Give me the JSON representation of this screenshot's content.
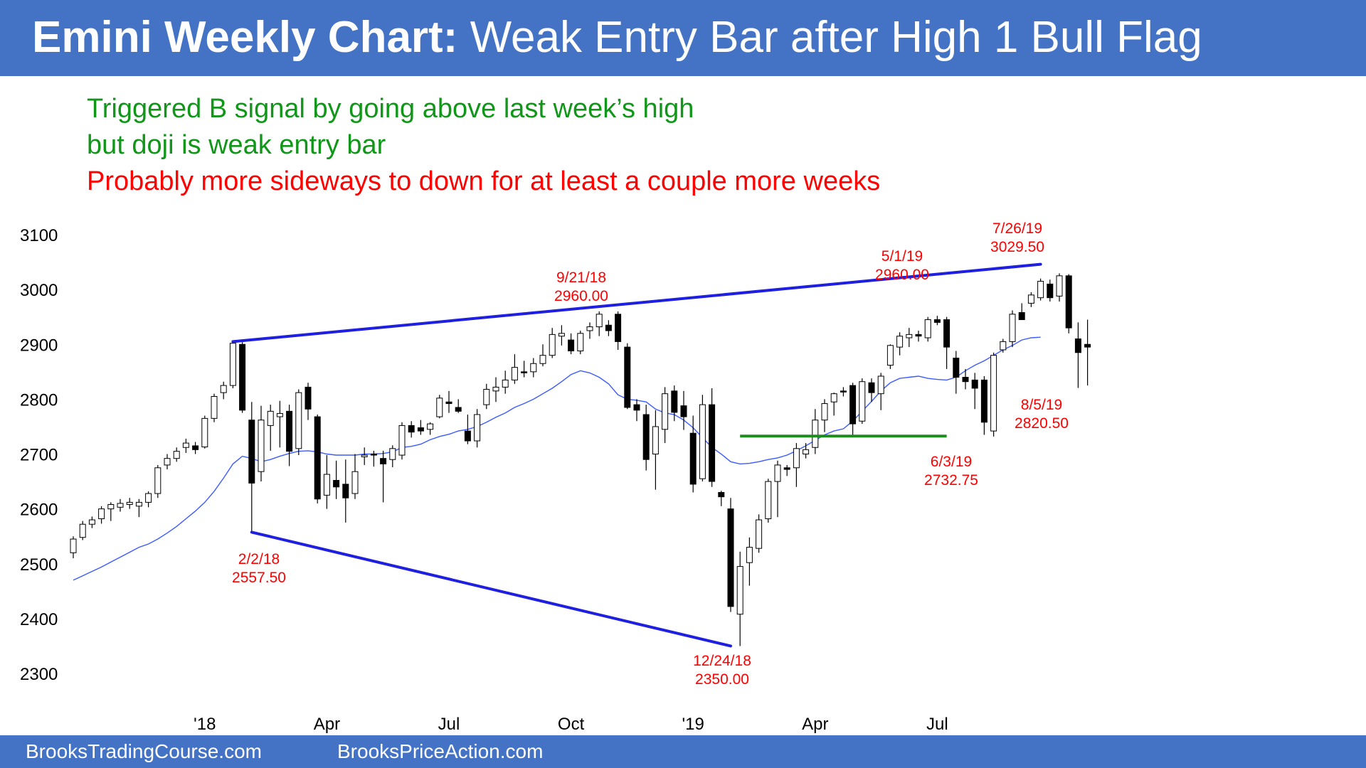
{
  "title": {
    "bold": "Emini Weekly Chart:",
    "rest": "Weak Entry Bar after High 1 Bull Flag"
  },
  "notes": [
    {
      "text": "Triggered B signal by going above last week’s high",
      "color": "#109618"
    },
    {
      "text": "but doji is weak entry bar",
      "color": "#109618"
    },
    {
      "text": "Probably more sideways to down for at least a couple more weeks",
      "color": "#ff0000"
    }
  ],
  "footer": {
    "left": "BrooksTradingCourse.com",
    "right": "BrooksPriceAction.com"
  },
  "colors": {
    "accent": "#4472c4",
    "trendline": "#1f1fe0",
    "ma": "#3b5bff",
    "support": "#1e8c1e",
    "annotation": "#ff0000"
  },
  "chart_data": {
    "type": "candlestick",
    "title": "",
    "xlabel": "",
    "ylabel": "",
    "ylim": [
      2250,
      3130
    ],
    "yticks": [
      2300,
      2400,
      2500,
      2600,
      2700,
      2800,
      2900,
      3000,
      3100
    ],
    "xtick_labels": [
      {
        "label": "'18",
        "bar": 14
      },
      {
        "label": "Apr",
        "bar": 27
      },
      {
        "label": "Jul",
        "bar": 40
      },
      {
        "label": "Oct",
        "bar": 53
      },
      {
        "label": "'19",
        "bar": 66
      },
      {
        "label": "Apr",
        "bar": 79
      },
      {
        "label": "Jul",
        "bar": 92
      }
    ],
    "candles": [
      {
        "o": 2520,
        "h": 2550,
        "l": 2510,
        "c": 2545
      },
      {
        "o": 2548,
        "h": 2578,
        "l": 2543,
        "c": 2572
      },
      {
        "o": 2572,
        "h": 2586,
        "l": 2565,
        "c": 2580
      },
      {
        "o": 2582,
        "h": 2605,
        "l": 2573,
        "c": 2600
      },
      {
        "o": 2600,
        "h": 2612,
        "l": 2578,
        "c": 2608
      },
      {
        "o": 2603,
        "h": 2618,
        "l": 2595,
        "c": 2610
      },
      {
        "o": 2608,
        "h": 2620,
        "l": 2600,
        "c": 2612
      },
      {
        "o": 2605,
        "h": 2618,
        "l": 2585,
        "c": 2612
      },
      {
        "o": 2612,
        "h": 2632,
        "l": 2603,
        "c": 2628
      },
      {
        "o": 2628,
        "h": 2680,
        "l": 2620,
        "c": 2675
      },
      {
        "o": 2680,
        "h": 2700,
        "l": 2672,
        "c": 2692
      },
      {
        "o": 2692,
        "h": 2712,
        "l": 2686,
        "c": 2705
      },
      {
        "o": 2712,
        "h": 2728,
        "l": 2702,
        "c": 2720
      },
      {
        "o": 2715,
        "h": 2722,
        "l": 2700,
        "c": 2708
      },
      {
        "o": 2713,
        "h": 2770,
        "l": 2710,
        "c": 2765
      },
      {
        "o": 2765,
        "h": 2810,
        "l": 2758,
        "c": 2805
      },
      {
        "o": 2812,
        "h": 2832,
        "l": 2800,
        "c": 2825
      },
      {
        "o": 2825,
        "h": 2905,
        "l": 2820,
        "c": 2902
      },
      {
        "o": 2900,
        "h": 2904,
        "l": 2775,
        "c": 2780
      },
      {
        "o": 2762,
        "h": 2795,
        "l": 2557,
        "c": 2647
      },
      {
        "o": 2668,
        "h": 2788,
        "l": 2650,
        "c": 2762
      },
      {
        "o": 2752,
        "h": 2790,
        "l": 2706,
        "c": 2778
      },
      {
        "o": 2768,
        "h": 2797,
        "l": 2712,
        "c": 2774
      },
      {
        "o": 2778,
        "h": 2790,
        "l": 2678,
        "c": 2705
      },
      {
        "o": 2710,
        "h": 2818,
        "l": 2698,
        "c": 2812
      },
      {
        "o": 2822,
        "h": 2830,
        "l": 2762,
        "c": 2782
      },
      {
        "o": 2768,
        "h": 2772,
        "l": 2610,
        "c": 2618
      },
      {
        "o": 2625,
        "h": 2698,
        "l": 2600,
        "c": 2663
      },
      {
        "o": 2652,
        "h": 2688,
        "l": 2618,
        "c": 2640
      },
      {
        "o": 2645,
        "h": 2690,
        "l": 2575,
        "c": 2620
      },
      {
        "o": 2628,
        "h": 2700,
        "l": 2618,
        "c": 2668
      },
      {
        "o": 2695,
        "h": 2712,
        "l": 2680,
        "c": 2698
      },
      {
        "o": 2700,
        "h": 2706,
        "l": 2677,
        "c": 2698
      },
      {
        "o": 2692,
        "h": 2706,
        "l": 2612,
        "c": 2682
      },
      {
        "o": 2690,
        "h": 2716,
        "l": 2676,
        "c": 2710
      },
      {
        "o": 2698,
        "h": 2758,
        "l": 2690,
        "c": 2752
      },
      {
        "o": 2752,
        "h": 2760,
        "l": 2730,
        "c": 2740
      },
      {
        "o": 2748,
        "h": 2762,
        "l": 2735,
        "c": 2742
      },
      {
        "o": 2745,
        "h": 2758,
        "l": 2735,
        "c": 2755
      },
      {
        "o": 2768,
        "h": 2808,
        "l": 2765,
        "c": 2802
      },
      {
        "o": 2795,
        "h": 2815,
        "l": 2775,
        "c": 2792
      },
      {
        "o": 2785,
        "h": 2800,
        "l": 2775,
        "c": 2778
      },
      {
        "o": 2742,
        "h": 2772,
        "l": 2718,
        "c": 2724
      },
      {
        "o": 2724,
        "h": 2782,
        "l": 2712,
        "c": 2772
      },
      {
        "o": 2790,
        "h": 2828,
        "l": 2782,
        "c": 2818
      },
      {
        "o": 2815,
        "h": 2840,
        "l": 2795,
        "c": 2822
      },
      {
        "o": 2822,
        "h": 2852,
        "l": 2810,
        "c": 2835
      },
      {
        "o": 2835,
        "h": 2882,
        "l": 2828,
        "c": 2858
      },
      {
        "o": 2850,
        "h": 2870,
        "l": 2840,
        "c": 2848
      },
      {
        "o": 2850,
        "h": 2875,
        "l": 2840,
        "c": 2865
      },
      {
        "o": 2865,
        "h": 2900,
        "l": 2860,
        "c": 2880
      },
      {
        "o": 2880,
        "h": 2930,
        "l": 2875,
        "c": 2918
      },
      {
        "o": 2915,
        "h": 2935,
        "l": 2898,
        "c": 2920
      },
      {
        "o": 2908,
        "h": 2920,
        "l": 2882,
        "c": 2888
      },
      {
        "o": 2888,
        "h": 2925,
        "l": 2882,
        "c": 2920
      },
      {
        "o": 2925,
        "h": 2940,
        "l": 2910,
        "c": 2932
      },
      {
        "o": 2932,
        "h": 2960,
        "l": 2915,
        "c": 2955
      },
      {
        "o": 2935,
        "h": 2944,
        "l": 2915,
        "c": 2925
      },
      {
        "o": 2955,
        "h": 2960,
        "l": 2890,
        "c": 2905
      },
      {
        "o": 2895,
        "h": 2902,
        "l": 2782,
        "c": 2785
      },
      {
        "o": 2790,
        "h": 2800,
        "l": 2760,
        "c": 2780
      },
      {
        "o": 2772,
        "h": 2790,
        "l": 2670,
        "c": 2690
      },
      {
        "o": 2700,
        "h": 2780,
        "l": 2635,
        "c": 2750
      },
      {
        "o": 2745,
        "h": 2822,
        "l": 2720,
        "c": 2810
      },
      {
        "o": 2815,
        "h": 2825,
        "l": 2760,
        "c": 2776
      },
      {
        "o": 2788,
        "h": 2815,
        "l": 2744,
        "c": 2768
      },
      {
        "o": 2738,
        "h": 2770,
        "l": 2630,
        "c": 2645
      },
      {
        "o": 2655,
        "h": 2808,
        "l": 2650,
        "c": 2790
      },
      {
        "o": 2790,
        "h": 2820,
        "l": 2640,
        "c": 2650
      },
      {
        "o": 2630,
        "h": 2633,
        "l": 2605,
        "c": 2622
      },
      {
        "o": 2600,
        "h": 2620,
        "l": 2412,
        "c": 2422
      },
      {
        "o": 2408,
        "h": 2522,
        "l": 2350,
        "c": 2495
      },
      {
        "o": 2502,
        "h": 2548,
        "l": 2460,
        "c": 2530
      },
      {
        "o": 2528,
        "h": 2590,
        "l": 2520,
        "c": 2580
      },
      {
        "o": 2582,
        "h": 2655,
        "l": 2575,
        "c": 2650
      },
      {
        "o": 2650,
        "h": 2688,
        "l": 2585,
        "c": 2680
      },
      {
        "o": 2675,
        "h": 2680,
        "l": 2660,
        "c": 2672
      },
      {
        "o": 2675,
        "h": 2720,
        "l": 2640,
        "c": 2710
      },
      {
        "o": 2700,
        "h": 2720,
        "l": 2692,
        "c": 2708
      },
      {
        "o": 2712,
        "h": 2782,
        "l": 2700,
        "c": 2762
      },
      {
        "o": 2762,
        "h": 2800,
        "l": 2740,
        "c": 2792
      },
      {
        "o": 2795,
        "h": 2812,
        "l": 2770,
        "c": 2810
      },
      {
        "o": 2815,
        "h": 2822,
        "l": 2805,
        "c": 2813
      },
      {
        "o": 2825,
        "h": 2830,
        "l": 2734,
        "c": 2755
      },
      {
        "o": 2760,
        "h": 2838,
        "l": 2755,
        "c": 2832
      },
      {
        "o": 2830,
        "h": 2838,
        "l": 2795,
        "c": 2812
      },
      {
        "o": 2810,
        "h": 2848,
        "l": 2780,
        "c": 2842
      },
      {
        "o": 2862,
        "h": 2900,
        "l": 2855,
        "c": 2898
      },
      {
        "o": 2895,
        "h": 2922,
        "l": 2880,
        "c": 2915
      },
      {
        "o": 2912,
        "h": 2930,
        "l": 2895,
        "c": 2918
      },
      {
        "o": 2918,
        "h": 2925,
        "l": 2905,
        "c": 2915
      },
      {
        "o": 2912,
        "h": 2950,
        "l": 2905,
        "c": 2945
      },
      {
        "o": 2945,
        "h": 2952,
        "l": 2935,
        "c": 2940
      },
      {
        "o": 2945,
        "h": 2950,
        "l": 2855,
        "c": 2895
      },
      {
        "o": 2875,
        "h": 2888,
        "l": 2810,
        "c": 2840
      },
      {
        "o": 2840,
        "h": 2855,
        "l": 2818,
        "c": 2832
      },
      {
        "o": 2835,
        "h": 2848,
        "l": 2782,
        "c": 2820
      },
      {
        "o": 2835,
        "h": 2842,
        "l": 2735,
        "c": 2758
      },
      {
        "o": 2742,
        "h": 2885,
        "l": 2732,
        "c": 2880
      },
      {
        "o": 2890,
        "h": 2910,
        "l": 2885,
        "c": 2905
      },
      {
        "o": 2905,
        "h": 2962,
        "l": 2895,
        "c": 2955
      },
      {
        "o": 2958,
        "h": 2975,
        "l": 2945,
        "c": 2945
      },
      {
        "o": 2975,
        "h": 2995,
        "l": 2968,
        "c": 2990
      },
      {
        "o": 2985,
        "h": 3020,
        "l": 2980,
        "c": 3015
      },
      {
        "o": 3010,
        "h": 3018,
        "l": 2978,
        "c": 2985
      },
      {
        "o": 2988,
        "h": 3029.5,
        "l": 2978,
        "c": 3025
      },
      {
        "o": 3025,
        "h": 3028,
        "l": 2920,
        "c": 2930
      },
      {
        "o": 2910,
        "h": 2940,
        "l": 2820.5,
        "c": 2885
      },
      {
        "o": 2900,
        "h": 2945,
        "l": 2825,
        "c": 2895
      }
    ],
    "moving_average": [
      2470,
      2478,
      2486,
      2494,
      2503,
      2512,
      2521,
      2530,
      2536,
      2545,
      2556,
      2568,
      2582,
      2596,
      2612,
      2632,
      2656,
      2682,
      2696,
      2692,
      2686,
      2690,
      2696,
      2701,
      2705,
      2706,
      2704,
      2700,
      2698,
      2698,
      2698,
      2700,
      2700,
      2701,
      2704,
      2712,
      2714,
      2718,
      2726,
      2732,
      2736,
      2742,
      2745,
      2750,
      2758,
      2767,
      2775,
      2785,
      2792,
      2800,
      2810,
      2820,
      2832,
      2845,
      2852,
      2848,
      2840,
      2828,
      2808,
      2800,
      2798,
      2795,
      2782,
      2775,
      2772,
      2762,
      2748,
      2730,
      2712,
      2700,
      2686,
      2682,
      2683,
      2686,
      2690,
      2693,
      2698,
      2706,
      2715,
      2725,
      2735,
      2742,
      2746,
      2760,
      2778,
      2796,
      2815,
      2830,
      2838,
      2840,
      2842,
      2838,
      2836,
      2835,
      2840,
      2852,
      2862,
      2870,
      2880,
      2890,
      2898,
      2908,
      2912,
      2913
    ],
    "trendlines": [
      {
        "from": {
          "bar": 17,
          "price": 2905
        },
        "to": {
          "bar": 103,
          "price": 3046
        }
      },
      {
        "from": {
          "bar": 19,
          "price": 2557.5
        },
        "to": {
          "bar": 70,
          "price": 2350
        }
      }
    ],
    "support_line": {
      "from_bar": 71,
      "to_bar": 93,
      "price": 2732.75
    },
    "annotations": [
      {
        "date": "2/2/18",
        "value": "2557.50"
      },
      {
        "date": "9/21/18",
        "value": "2960.00"
      },
      {
        "date": "12/24/18",
        "value": "2350.00"
      },
      {
        "date": "5/1/19",
        "value": "2960.00"
      },
      {
        "date": "6/3/19",
        "value": "2732.75"
      },
      {
        "date": "7/26/19",
        "value": "3029.50"
      },
      {
        "date": "8/5/19",
        "value": "2820.50"
      }
    ]
  }
}
